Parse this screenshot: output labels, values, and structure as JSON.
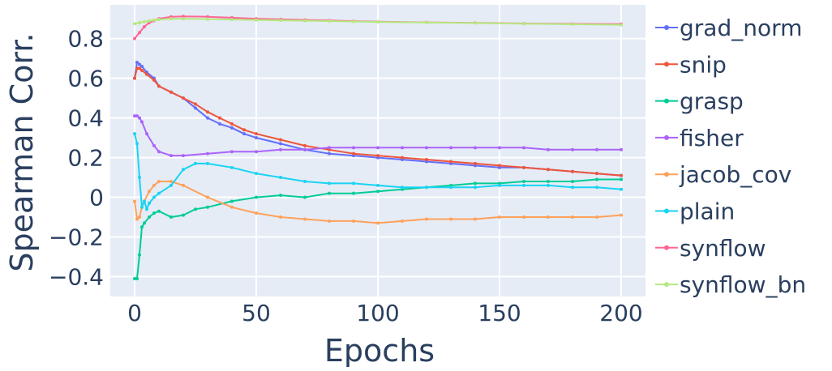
{
  "chart_data": {
    "type": "line",
    "title": "",
    "xlabel": "Epochs",
    "ylabel": "Spearman Corr.",
    "xlim": [
      -10,
      210
    ],
    "ylim": [
      -0.5,
      0.97
    ],
    "xticks": [
      0,
      50,
      100,
      150,
      200
    ],
    "xtick_labels": [
      "0",
      "50",
      "100",
      "150",
      "200"
    ],
    "yticks": [
      -0.4,
      -0.2,
      0,
      0.2,
      0.4,
      0.6,
      0.8
    ],
    "ytick_labels": [
      "−0.4",
      "−0.2",
      "0",
      "0.2",
      "0.4",
      "0.6",
      "0.8"
    ],
    "grid": true,
    "legend_position": "right",
    "plot_background": "#e5ecf6",
    "series": [
      {
        "name": "grad_norm",
        "color": "#636efa",
        "x": [
          0,
          1,
          2,
          3,
          5,
          8,
          10,
          15,
          20,
          25,
          30,
          35,
          40,
          45,
          50,
          60,
          70,
          80,
          90,
          100,
          110,
          120,
          130,
          140,
          150,
          160,
          170,
          180,
          190,
          200
        ],
        "y": [
          0.6,
          0.68,
          0.67,
          0.66,
          0.63,
          0.6,
          0.56,
          0.53,
          0.5,
          0.45,
          0.4,
          0.37,
          0.35,
          0.32,
          0.3,
          0.27,
          0.24,
          0.22,
          0.21,
          0.2,
          0.19,
          0.18,
          0.17,
          0.16,
          0.15,
          0.15,
          0.14,
          0.13,
          0.12,
          0.11
        ]
      },
      {
        "name": "snip",
        "color": "#ef553b",
        "x": [
          0,
          1,
          2,
          3,
          5,
          8,
          10,
          15,
          20,
          25,
          30,
          35,
          40,
          45,
          50,
          60,
          70,
          80,
          90,
          100,
          110,
          120,
          130,
          140,
          150,
          160,
          170,
          180,
          190,
          200
        ],
        "y": [
          0.6,
          0.65,
          0.65,
          0.64,
          0.62,
          0.59,
          0.56,
          0.53,
          0.5,
          0.47,
          0.43,
          0.4,
          0.37,
          0.34,
          0.32,
          0.29,
          0.26,
          0.24,
          0.22,
          0.21,
          0.2,
          0.19,
          0.18,
          0.17,
          0.16,
          0.15,
          0.14,
          0.13,
          0.12,
          0.11
        ]
      },
      {
        "name": "grasp",
        "color": "#00cc96",
        "x": [
          0,
          1,
          2,
          3,
          4,
          6,
          8,
          10,
          15,
          20,
          25,
          30,
          40,
          50,
          60,
          70,
          80,
          90,
          100,
          110,
          120,
          130,
          140,
          150,
          160,
          170,
          180,
          190,
          200
        ],
        "y": [
          -0.41,
          -0.41,
          -0.29,
          -0.15,
          -0.13,
          -0.1,
          -0.08,
          -0.07,
          -0.1,
          -0.09,
          -0.06,
          -0.05,
          -0.02,
          0.0,
          0.01,
          0.0,
          0.02,
          0.02,
          0.03,
          0.04,
          0.05,
          0.06,
          0.07,
          0.07,
          0.08,
          0.08,
          0.08,
          0.09,
          0.09
        ]
      },
      {
        "name": "fisher",
        "color": "#ab63fa",
        "x": [
          0,
          1,
          2,
          3,
          5,
          8,
          10,
          15,
          20,
          30,
          40,
          50,
          60,
          70,
          80,
          90,
          100,
          110,
          120,
          130,
          140,
          150,
          160,
          170,
          180,
          190,
          200
        ],
        "y": [
          0.41,
          0.41,
          0.4,
          0.38,
          0.32,
          0.26,
          0.23,
          0.21,
          0.21,
          0.22,
          0.23,
          0.23,
          0.24,
          0.24,
          0.25,
          0.25,
          0.25,
          0.25,
          0.25,
          0.25,
          0.25,
          0.25,
          0.25,
          0.24,
          0.24,
          0.24,
          0.24
        ]
      },
      {
        "name": "jacob_cov",
        "color": "#ffa15a",
        "x": [
          0,
          1,
          2,
          3,
          4,
          6,
          8,
          10,
          15,
          20,
          30,
          40,
          50,
          60,
          70,
          80,
          90,
          100,
          110,
          120,
          130,
          140,
          150,
          160,
          170,
          180,
          190,
          200
        ],
        "y": [
          -0.02,
          -0.11,
          -0.1,
          -0.05,
          -0.02,
          0.03,
          0.06,
          0.08,
          0.08,
          0.06,
          0.0,
          -0.05,
          -0.08,
          -0.1,
          -0.11,
          -0.12,
          -0.12,
          -0.13,
          -0.12,
          -0.11,
          -0.11,
          -0.11,
          -0.1,
          -0.1,
          -0.1,
          -0.1,
          -0.1,
          -0.09
        ]
      },
      {
        "name": "plain",
        "color": "#19d3f3",
        "x": [
          0,
          1,
          2,
          3,
          4,
          5,
          6,
          8,
          10,
          15,
          20,
          25,
          30,
          40,
          50,
          60,
          70,
          80,
          90,
          100,
          110,
          120,
          130,
          140,
          150,
          160,
          170,
          180,
          190,
          200
        ],
        "y": [
          0.32,
          0.27,
          0.1,
          -0.05,
          -0.02,
          -0.06,
          -0.03,
          0.0,
          0.02,
          0.06,
          0.14,
          0.17,
          0.17,
          0.15,
          0.12,
          0.1,
          0.08,
          0.07,
          0.07,
          0.06,
          0.05,
          0.05,
          0.05,
          0.05,
          0.06,
          0.06,
          0.06,
          0.05,
          0.05,
          0.04
        ]
      },
      {
        "name": "synflow",
        "color": "#ff6692",
        "x": [
          0,
          2,
          4,
          6,
          8,
          10,
          15,
          20,
          30,
          40,
          50,
          60,
          70,
          80,
          90,
          100,
          120,
          140,
          160,
          180,
          200
        ],
        "y": [
          0.8,
          0.83,
          0.86,
          0.88,
          0.89,
          0.9,
          0.91,
          0.912,
          0.91,
          0.905,
          0.9,
          0.897,
          0.894,
          0.891,
          0.888,
          0.885,
          0.882,
          0.879,
          0.876,
          0.874,
          0.873
        ]
      },
      {
        "name": "synflow_bn",
        "color": "#b6e880",
        "x": [
          0,
          2,
          4,
          6,
          8,
          10,
          15,
          20,
          30,
          40,
          50,
          60,
          70,
          80,
          90,
          100,
          120,
          140,
          160,
          180,
          200
        ],
        "y": [
          0.875,
          0.88,
          0.885,
          0.89,
          0.893,
          0.896,
          0.9,
          0.9,
          0.898,
          0.896,
          0.894,
          0.892,
          0.89,
          0.888,
          0.886,
          0.884,
          0.881,
          0.878,
          0.875,
          0.872,
          0.869
        ]
      }
    ]
  }
}
